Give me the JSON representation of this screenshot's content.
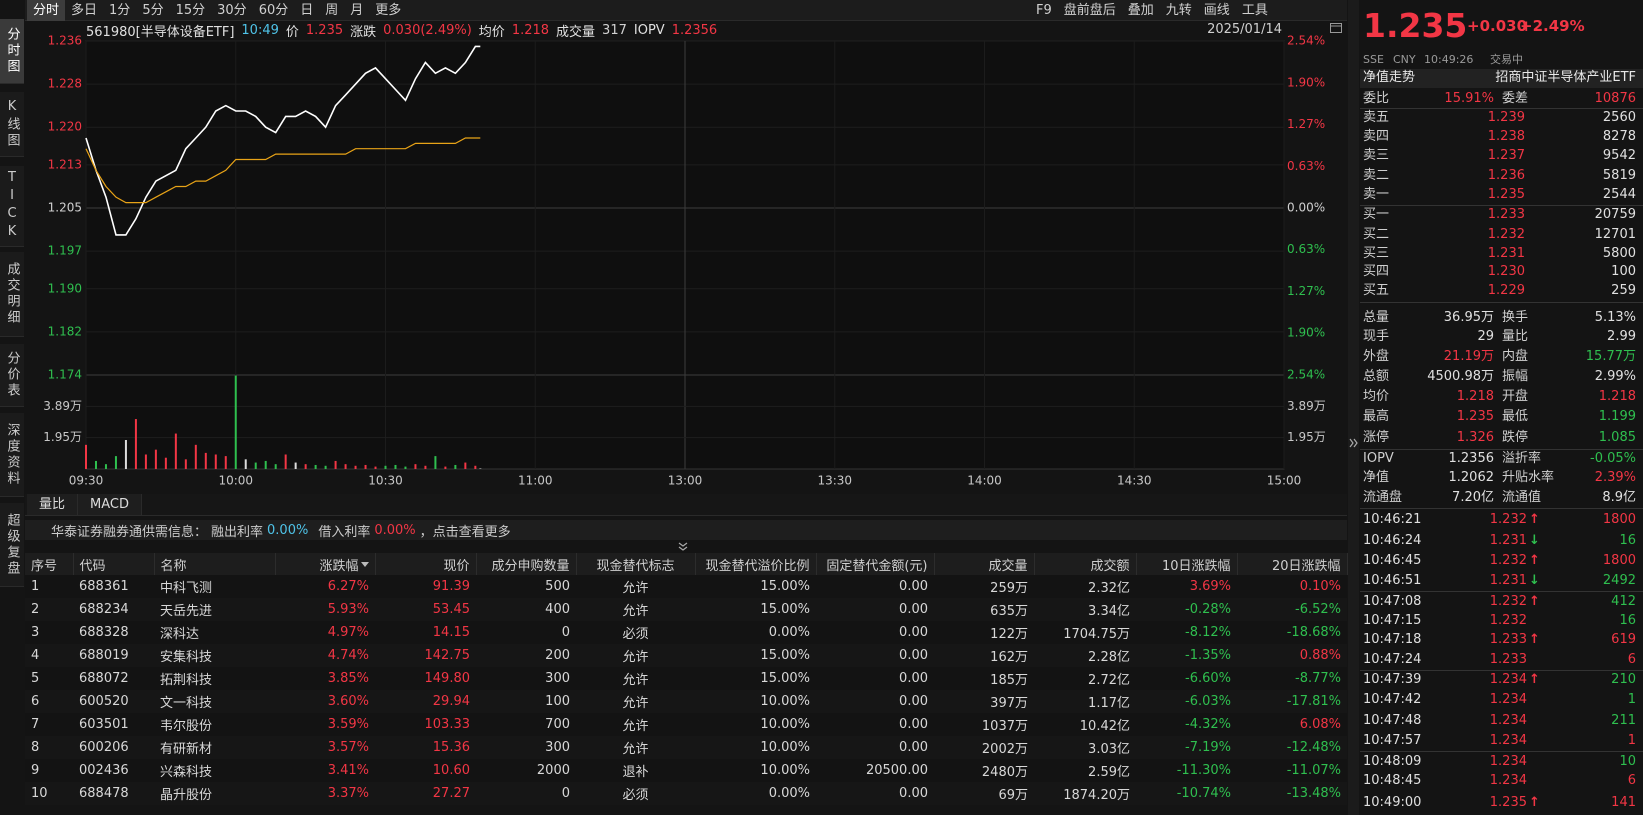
{
  "sidebar": {
    "tabs": [
      "分时图",
      "K线图",
      "TICK",
      "成交明细",
      "分价表",
      "深度资料",
      "超级复盘"
    ]
  },
  "toolbar": {
    "periods": [
      "分时",
      "多日",
      "1分",
      "5分",
      "15分",
      "30分",
      "60分",
      "日",
      "周",
      "月",
      "更多"
    ],
    "tools": [
      "F9",
      "盘前盘后",
      "叠加",
      "九转",
      "画线",
      "工具"
    ]
  },
  "header": {
    "symbol": "561980[半导体设备ETF]",
    "time": "10:49",
    "items": [
      {
        "label": "价",
        "value": "1.235",
        "color": "#f23645"
      },
      {
        "label": "涨跌",
        "value": "0.030(2.49%)",
        "color": "#f23645"
      },
      {
        "label": "均价",
        "value": "1.218",
        "color": "#f23645"
      },
      {
        "label": "成交量",
        "value": "317",
        "color": "#d0d0d0"
      },
      {
        "label": "IOPV",
        "value": "1.2356",
        "color": "#f23645"
      }
    ],
    "date": "2025/01/14"
  },
  "chart_data": {
    "type": "line",
    "x": [
      0,
      2,
      4,
      6,
      8,
      10,
      12,
      14,
      16,
      18,
      20,
      22,
      24,
      26,
      28,
      30,
      32,
      34,
      36,
      38,
      40,
      42,
      44,
      46,
      48,
      50,
      52,
      54,
      56,
      58,
      60,
      62,
      64,
      66,
      68,
      70,
      72,
      74,
      76,
      78,
      79
    ],
    "xlim": [
      0,
      240
    ],
    "xticks": [
      {
        "value": 0,
        "label": "09:30"
      },
      {
        "value": 30,
        "label": "10:00"
      },
      {
        "value": 60,
        "label": "10:30"
      },
      {
        "value": 90,
        "label": "11:00"
      },
      {
        "value": 120,
        "label": "13:00"
      },
      {
        "value": 150,
        "label": "13:30"
      },
      {
        "value": 180,
        "label": "14:00"
      },
      {
        "value": 210,
        "label": "14:30"
      },
      {
        "value": 240,
        "label": "15:00"
      }
    ],
    "ylim": [
      1.174,
      1.236
    ],
    "yticks": [
      1.236,
      1.228,
      {
        "value": 1.22,
        "label": "1.220"
      },
      1.213,
      1.205,
      1.197,
      {
        "value": 1.19,
        "label": "1.190"
      },
      1.182,
      1.174
    ],
    "y2lim": [
      -2.54,
      2.54
    ],
    "y2ticks": [
      {
        "value": 2.54,
        "label": "2.54%"
      },
      {
        "value": 1.9,
        "label": "1.90%"
      },
      {
        "value": 1.27,
        "label": "1.27%"
      },
      {
        "value": 0.63,
        "label": "0.63%"
      },
      {
        "value": 0,
        "label": "0.00%"
      },
      {
        "value": -0.63,
        "label": "0.63%"
      },
      {
        "value": -1.27,
        "label": "1.27%"
      },
      {
        "value": -1.9,
        "label": "1.90%"
      },
      {
        "value": -2.54,
        "label": "2.54%"
      }
    ],
    "grid": true,
    "series": [
      {
        "color": "#ffffff",
        "values": [
          1.218,
          1.212,
          1.207,
          1.2,
          1.2,
          1.203,
          1.207,
          1.21,
          1.211,
          1.212,
          1.216,
          1.218,
          1.22,
          1.223,
          1.224,
          1.223,
          1.223,
          1.222,
          1.22,
          1.219,
          1.222,
          1.222,
          1.223,
          1.222,
          1.22,
          1.224,
          1.226,
          1.228,
          1.23,
          1.231,
          1.229,
          1.227,
          1.225,
          1.229,
          1.232,
          1.23,
          1.231,
          1.23,
          1.232,
          1.235,
          1.235
        ]
      },
      {
        "color": "#e8a317",
        "values": [
          1.216,
          1.212,
          1.209,
          1.207,
          1.206,
          1.206,
          1.206,
          1.207,
          1.208,
          1.209,
          1.209,
          1.21,
          1.21,
          1.211,
          1.212,
          1.214,
          1.214,
          1.214,
          1.214,
          1.215,
          1.215,
          1.215,
          1.215,
          1.215,
          1.215,
          1.215,
          1.215,
          1.216,
          1.216,
          1.216,
          1.216,
          1.216,
          1.216,
          1.217,
          1.217,
          1.217,
          1.217,
          1.217,
          1.218,
          1.218,
          1.218
        ]
      }
    ],
    "volume": {
      "ylim": [
        0,
        58350
      ],
      "yticks": [
        {
          "value": 38900,
          "label": "3.89万"
        },
        {
          "value": 19500,
          "label": "1.95万"
        }
      ],
      "up_color": "#f23645",
      "down_color": "#2fbf4f",
      "flat_color": "#dddddd",
      "values": [
        15000,
        5000,
        3000,
        8000,
        18000,
        31000,
        9000,
        12000,
        7000,
        22000,
        6000,
        15000,
        10000,
        9000,
        8000,
        58000,
        6000,
        4000,
        5000,
        3000,
        9000,
        4000,
        3000,
        2500,
        2000,
        5000,
        3000,
        2000,
        2500,
        1500,
        2000,
        2500,
        1500,
        3000,
        2000,
        8000,
        1500,
        2500,
        4000,
        2000,
        317
      ]
    }
  },
  "indicator_tabs": [
    "量比",
    "MACD"
  ],
  "notice": {
    "source": "华泰证券融券通供需信息：",
    "lend_label": "融出利率",
    "lend": "0.00%",
    "borrow_label": "借入利率",
    "borrow": "0.00%",
    "more": "，点击查看更多"
  },
  "table": {
    "columns": [
      "序号",
      "代码",
      "名称",
      "涨跌幅",
      "现价",
      "成分申购数量",
      "现金替代标志",
      "现金替代溢价比例",
      "固定替代金额(元)",
      "成交量",
      "成交额",
      "10日涨跌幅",
      "20日涨跌幅"
    ],
    "rows": [
      [
        "1",
        "688361",
        "中科飞测",
        "6.27%",
        "91.39",
        "500",
        "允许",
        "15.00%",
        "0.00",
        "259万",
        "2.32亿",
        "3.69%",
        "0.10%"
      ],
      [
        "2",
        "688234",
        "天岳先进",
        "5.93%",
        "53.45",
        "400",
        "允许",
        "15.00%",
        "0.00",
        "635万",
        "3.34亿",
        "-0.28%",
        "-6.52%"
      ],
      [
        "3",
        "688328",
        "深科达",
        "4.97%",
        "14.15",
        "0",
        "必须",
        "0.00%",
        "0.00",
        "122万",
        "1704.75万",
        "-8.12%",
        "-18.68%"
      ],
      [
        "4",
        "688019",
        "安集科技",
        "4.74%",
        "142.75",
        "200",
        "允许",
        "15.00%",
        "0.00",
        "162万",
        "2.28亿",
        "-1.35%",
        "0.88%"
      ],
      [
        "5",
        "688072",
        "拓荆科技",
        "3.85%",
        "149.80",
        "300",
        "允许",
        "15.00%",
        "0.00",
        "185万",
        "2.72亿",
        "-6.60%",
        "-8.77%"
      ],
      [
        "6",
        "600520",
        "文一科技",
        "3.60%",
        "29.94",
        "100",
        "允许",
        "10.00%",
        "0.00",
        "397万",
        "1.17亿",
        "-6.03%",
        "-17.81%"
      ],
      [
        "7",
        "603501",
        "韦尔股份",
        "3.59%",
        "103.33",
        "700",
        "允许",
        "10.00%",
        "0.00",
        "1037万",
        "10.42亿",
        "-4.32%",
        "6.08%"
      ],
      [
        "8",
        "600206",
        "有研新材",
        "3.57%",
        "15.36",
        "300",
        "允许",
        "10.00%",
        "0.00",
        "2002万",
        "3.03亿",
        "-7.19%",
        "-12.48%"
      ],
      [
        "9",
        "002436",
        "兴森科技",
        "3.41%",
        "10.60",
        "2000",
        "退补",
        "10.00%",
        "20500.00",
        "2480万",
        "2.59亿",
        "-11.30%",
        "-11.07%"
      ],
      [
        "10",
        "688478",
        "晶升股份",
        "3.37%",
        "27.27",
        "0",
        "必须",
        "0.00%",
        "0.00",
        "69万",
        "1874.20万",
        "-10.74%",
        "-13.48%"
      ]
    ]
  },
  "quote": {
    "price": "1.235",
    "change": "+0.030",
    "change_pct": "+2.49%",
    "meta": [
      "SSE",
      "CNY",
      "10:49:26",
      "交易中"
    ],
    "nav_label": "净值走势",
    "fund_name": "招商中证半导体产业ETF",
    "committee": [
      {
        "label": "委比",
        "value": "15.91%",
        "color": "#f23645"
      },
      {
        "label": "委差",
        "value": "10876",
        "color": "#f23645"
      }
    ],
    "asks": [
      {
        "label": "卖五",
        "price": "1.239",
        "volume": "2560"
      },
      {
        "label": "卖四",
        "price": "1.238",
        "volume": "8278"
      },
      {
        "label": "卖三",
        "price": "1.237",
        "volume": "9542"
      },
      {
        "label": "卖二",
        "price": "1.236",
        "volume": "5819"
      },
      {
        "label": "卖一",
        "price": "1.235",
        "volume": "2544"
      }
    ],
    "bids": [
      {
        "label": "买一",
        "price": "1.233",
        "volume": "20759"
      },
      {
        "label": "买二",
        "price": "1.232",
        "volume": "12701"
      },
      {
        "label": "买三",
        "price": "1.231",
        "volume": "5800"
      },
      {
        "label": "买四",
        "price": "1.230",
        "volume": "100"
      },
      {
        "label": "买五",
        "price": "1.229",
        "volume": "259"
      }
    ],
    "stats": [
      [
        {
          "label": "总量",
          "value": "36.95万",
          "color": "#e0e0e0"
        },
        {
          "label": "换手",
          "value": "5.13%",
          "color": "#e0e0e0"
        }
      ],
      [
        {
          "label": "现手",
          "value": "29",
          "color": "#e0e0e0"
        },
        {
          "label": "量比",
          "value": "2.99",
          "color": "#e0e0e0"
        }
      ],
      [
        {
          "label": "外盘",
          "value": "21.19万",
          "color": "#f23645"
        },
        {
          "label": "内盘",
          "value": "15.77万",
          "color": "#2fbf4f"
        }
      ],
      [
        {
          "label": "总额",
          "value": "4500.98万",
          "color": "#e0e0e0"
        },
        {
          "label": "振幅",
          "value": "2.99%",
          "color": "#e0e0e0"
        }
      ],
      [
        {
          "label": "均价",
          "value": "1.218",
          "color": "#f23645"
        },
        {
          "label": "开盘",
          "value": "1.218",
          "color": "#f23645"
        }
      ],
      [
        {
          "label": "最高",
          "value": "1.235",
          "color": "#f23645"
        },
        {
          "label": "最低",
          "value": "1.199",
          "color": "#2fbf4f"
        }
      ],
      [
        {
          "label": "涨停",
          "value": "1.326",
          "color": "#f23645"
        },
        {
          "label": "跌停",
          "value": "1.085",
          "color": "#2fbf4f"
        }
      ]
    ],
    "etf": [
      [
        {
          "label": "IOPV",
          "value": "1.2356",
          "color": "#e0e0e0"
        },
        {
          "label": "溢折率",
          "value": "-0.05%",
          "color": "#2fbf4f"
        }
      ],
      [
        {
          "label": "净值",
          "value": "1.2062",
          "color": "#e0e0e0"
        },
        {
          "label": "升贴水率",
          "value": "2.39%",
          "color": "#f23645"
        }
      ],
      [
        {
          "label": "流通盘",
          "value": "7.20亿",
          "color": "#e0e0e0"
        },
        {
          "label": "流通值",
          "value": "8.9亿",
          "color": "#e0e0e0"
        }
      ]
    ],
    "trades": [
      {
        "time": "10:46:21",
        "price": "1.232",
        "arrow": "↑",
        "volume": "1800",
        "color": "#f23645"
      },
      {
        "time": "10:46:24",
        "price": "1.231",
        "arrow": "↓",
        "volume": "16",
        "color": "#2fbf4f"
      },
      {
        "time": "10:46:45",
        "price": "1.232",
        "arrow": "↑",
        "volume": "1800",
        "color": "#f23645"
      },
      {
        "time": "10:46:51",
        "price": "1.231",
        "arrow": "↓",
        "volume": "2492",
        "color": "#2fbf4f"
      },
      {
        "time": "10:47:08",
        "price": "1.232",
        "arrow": "↑",
        "volume": "412",
        "color": "#2fbf4f"
      },
      {
        "time": "10:47:15",
        "price": "1.232",
        "arrow": null,
        "volume": "16",
        "color": "#2fbf4f"
      },
      {
        "time": "10:47:18",
        "price": "1.233",
        "arrow": "↑",
        "volume": "619",
        "color": "#f23645"
      },
      {
        "time": "10:47:24",
        "price": "1.233",
        "arrow": null,
        "volume": "6",
        "color": "#f23645"
      },
      {
        "time": "10:47:39",
        "price": "1.234",
        "arrow": "↑",
        "volume": "210",
        "color": "#2fbf4f"
      },
      {
        "time": "10:47:42",
        "price": "1.234",
        "arrow": null,
        "volume": "1",
        "color": "#2fbf4f"
      },
      {
        "time": "10:47:48",
        "price": "1.234",
        "arrow": null,
        "volume": "211",
        "color": "#2fbf4f"
      },
      {
        "time": "10:47:57",
        "price": "1.234",
        "arrow": null,
        "volume": "1",
        "color": "#f23645"
      },
      {
        "time": "10:48:09",
        "price": "1.234",
        "arrow": null,
        "volume": "10",
        "color": "#2fbf4f"
      },
      {
        "time": "10:48:45",
        "price": "1.234",
        "arrow": null,
        "volume": "6",
        "color": "#f23645"
      },
      {
        "time": "10:49:00",
        "price": "1.235",
        "arrow": "↑",
        "volume": "141",
        "color": "#f23645"
      }
    ]
  }
}
